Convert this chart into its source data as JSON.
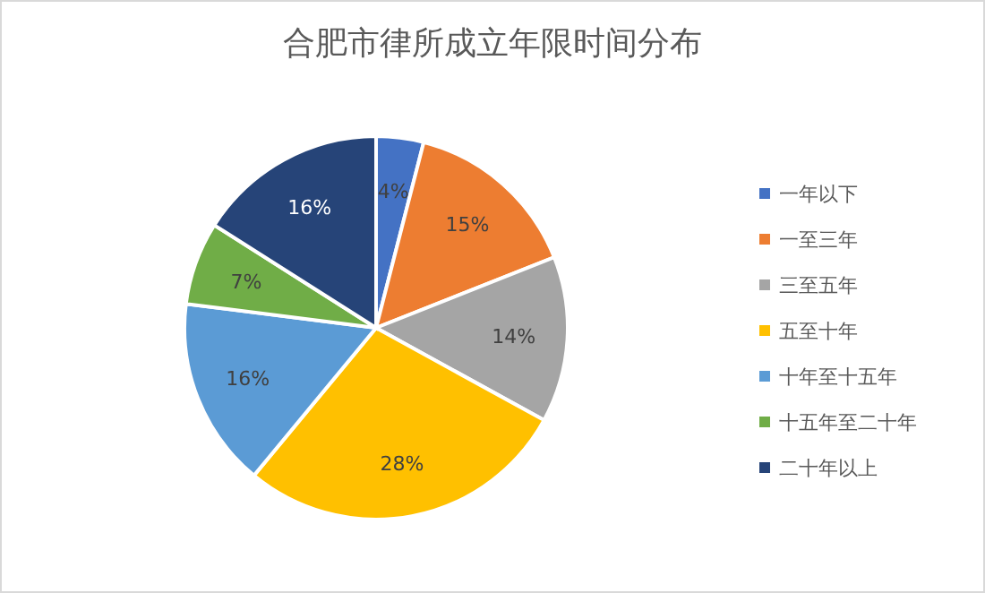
{
  "chart_data": {
    "type": "pie",
    "title": "合肥市律所成立年限时间分布",
    "categories": [
      "一年以下",
      "一至三年",
      "三至五年",
      "五至十年",
      "十年至十五年",
      "十五年至二十年",
      "二十年以上"
    ],
    "values": [
      4,
      15,
      14,
      28,
      16,
      7,
      16
    ],
    "value_labels": [
      "4%",
      "15%",
      "14%",
      "28%",
      "16%",
      "7%",
      "16%"
    ],
    "colors": [
      "#4472c4",
      "#ed7d31",
      "#a5a5a5",
      "#ffc000",
      "#5b9bd5",
      "#70ad47",
      "#264478"
    ],
    "legend": "right"
  }
}
